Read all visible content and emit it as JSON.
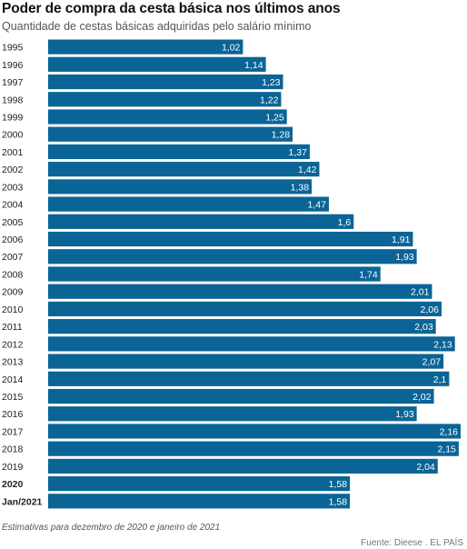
{
  "header": {
    "title": "Poder de compra da cesta básica nos últimos anos",
    "subtitle": "Quantidade de cestas básicas adquiridas pelo salário mínimo"
  },
  "footer": {
    "note": "Estimativas para dezembro de 2020 e janeiro de 2021",
    "source": "Fuente: Dieese . EL PAÍS"
  },
  "colors": {
    "bar": "#0b6496",
    "bar_label": "#ffffff",
    "category_label": "#222222"
  },
  "chart_data": {
    "type": "bar",
    "orientation": "horizontal",
    "title": "Poder de compra da cesta básica nos últimos anos",
    "subtitle": "Quantidade de cestas básicas adquiridas pelo salário mínimo",
    "categories": [
      "1995",
      "1996",
      "1997",
      "1998",
      "1999",
      "2000",
      "2001",
      "2002",
      "2003",
      "2004",
      "2005",
      "2006",
      "2007",
      "2008",
      "2009",
      "2010",
      "2011",
      "2012",
      "2013",
      "2014",
      "2015",
      "2016",
      "2017",
      "2018",
      "2019",
      "2020",
      "Jan/2021"
    ],
    "values": [
      1.02,
      1.14,
      1.23,
      1.22,
      1.25,
      1.28,
      1.37,
      1.42,
      1.38,
      1.47,
      1.6,
      1.91,
      1.93,
      1.74,
      2.01,
      2.06,
      2.03,
      2.13,
      2.07,
      2.1,
      2.02,
      1.93,
      2.16,
      2.15,
      2.04,
      1.58,
      1.58
    ],
    "value_labels": [
      "1,02",
      "1,14",
      "1,23",
      "1,22",
      "1,25",
      "1,28",
      "1,37",
      "1,42",
      "1,38",
      "1,47",
      "1,6",
      "1,91",
      "1,93",
      "1,74",
      "2,01",
      "2,06",
      "2,03",
      "2,13",
      "2,07",
      "2,1",
      "2,02",
      "1,93",
      "2,16",
      "2,15",
      "2,04",
      "1,58",
      "1,58"
    ],
    "bold_categories": [
      "2020",
      "Jan/2021"
    ],
    "xlim": [
      0,
      2.16
    ],
    "grid": false,
    "legend": "none"
  }
}
